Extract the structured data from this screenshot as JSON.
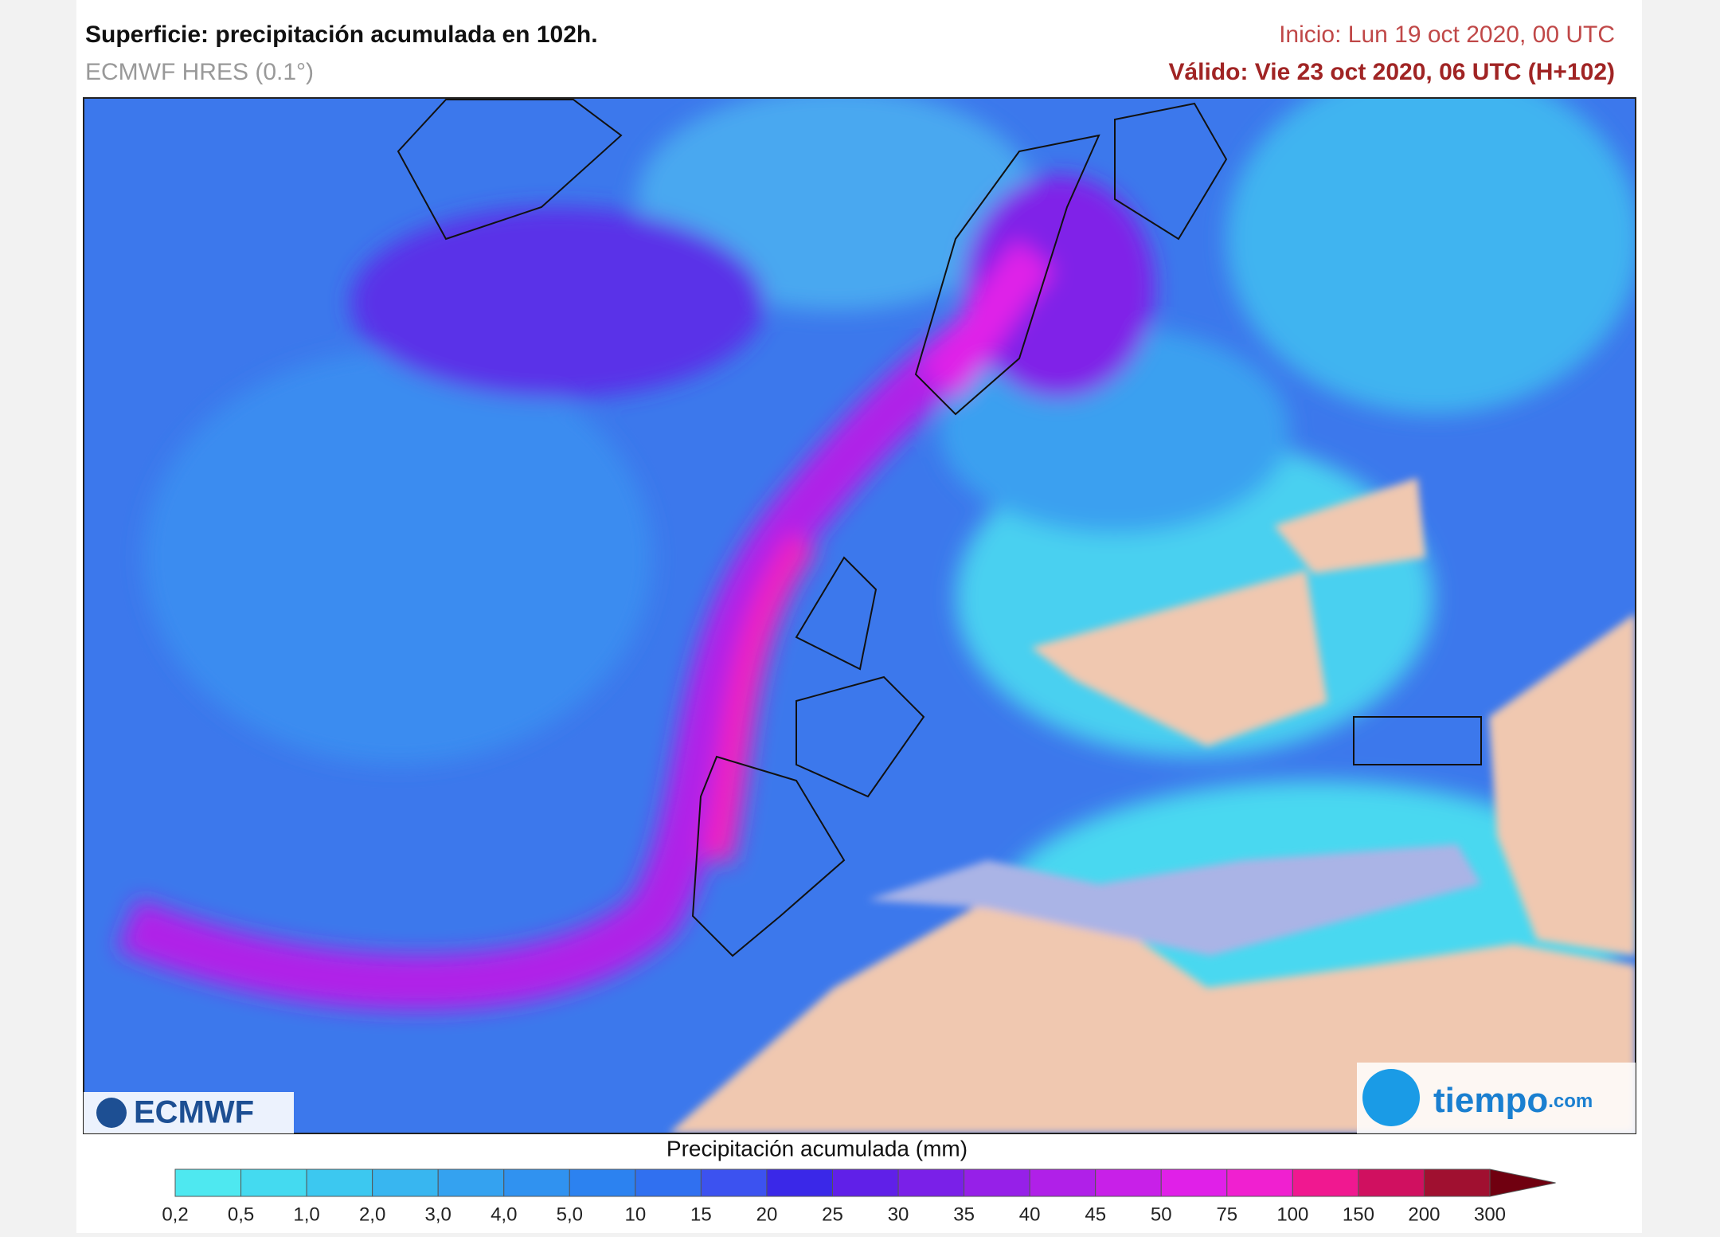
{
  "header": {
    "title": "Superficie: precipitación acumulada en 102h.",
    "subtitle": "ECMWF HRES (0.1°)",
    "start": "Inicio: Lun 19 oct 2020, 00 UTC",
    "valid": "Válido: Vie 23 oct 2020, 06 UTC (H+102)"
  },
  "logos": {
    "left": "ECMWF",
    "right": "tiempo",
    "right_suffix": ".com"
  },
  "legend": {
    "title": "Precipitación acumulada (mm)",
    "labels": [
      "0,2",
      "0,5",
      "1,0",
      "2,0",
      "3,0",
      "4,0",
      "5,0",
      "10",
      "15",
      "20",
      "25",
      "30",
      "35",
      "40",
      "45",
      "50",
      "75",
      "100",
      "150",
      "200",
      "300"
    ],
    "colors": [
      "#4ee8f0",
      "#44daf0",
      "#3cc8f0",
      "#38b6f0",
      "#34a2f0",
      "#3092f0",
      "#2c82f0",
      "#3070f0",
      "#3c52f0",
      "#3a28e8",
      "#6020e8",
      "#7a20e8",
      "#9620e8",
      "#b020e8",
      "#c820e8",
      "#e020e8",
      "#f020d0",
      "#f01890",
      "#d01060",
      "#a01030",
      "#700010"
    ]
  }
}
